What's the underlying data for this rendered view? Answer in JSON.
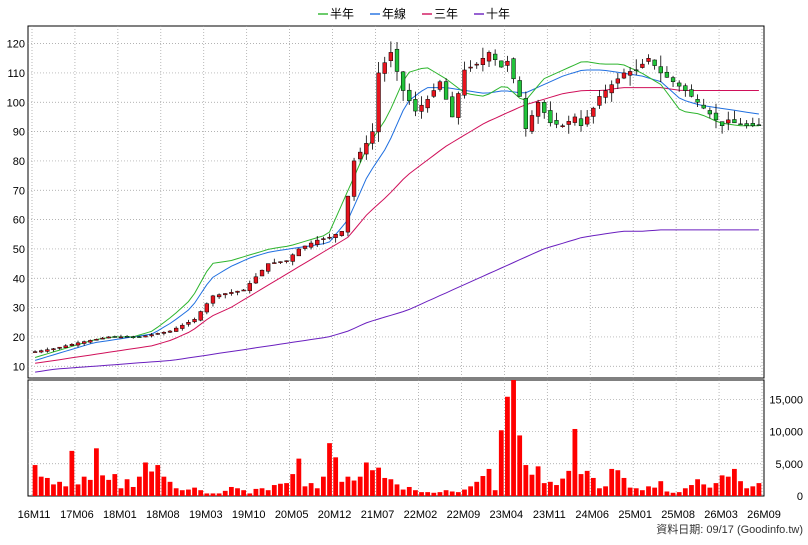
{
  "chart_data": {
    "type": "candlestick",
    "legend": [
      {
        "name": "半年",
        "color": "#2db52d"
      },
      {
        "name": "年線",
        "color": "#1f6fe0"
      },
      {
        "name": "三年",
        "color": "#d0105a"
      },
      {
        "name": "十年",
        "color": "#6a1fbf"
      }
    ],
    "x_labels": [
      "16M11",
      "17M06",
      "18M01",
      "18M08",
      "19M03",
      "19M10",
      "20M05",
      "20M12",
      "21M07",
      "22M02",
      "22M09",
      "23M04",
      "23M11",
      "24M06",
      "25M01",
      "25M08",
      "26M03",
      "26M09"
    ],
    "price_axis": {
      "ticks": [
        10,
        20,
        30,
        40,
        50,
        60,
        70,
        80,
        90,
        100,
        110,
        120
      ],
      "range": [
        6,
        126
      ]
    },
    "volume_axis": {
      "ticks": [
        0,
        5000,
        10000,
        15000
      ],
      "tick_labels": [
        "0",
        "5,000",
        "10,000",
        "15,000"
      ],
      "range": [
        0,
        18000
      ]
    },
    "ohlc_anchors": {
      "months_from_2016_11": [
        0,
        3,
        7,
        12,
        17,
        22,
        26,
        29,
        34,
        38,
        41,
        43,
        44,
        46,
        48,
        50,
        52,
        54,
        55,
        56,
        58,
        60,
        62,
        64,
        66,
        68,
        70,
        72,
        74,
        76,
        77,
        78,
        79,
        80,
        82,
        84,
        86,
        88,
        89,
        90,
        91,
        92,
        93,
        95,
        96,
        98,
        100,
        102,
        104,
        106,
        108,
        110,
        112,
        113,
        114,
        116,
        118
      ],
      "close": [
        15,
        16,
        18,
        20,
        20,
        22,
        26,
        34,
        36,
        45,
        46,
        50,
        51,
        53,
        54,
        56,
        80,
        86,
        90,
        110,
        117,
        104,
        97,
        101,
        107,
        95,
        111,
        113,
        117,
        112,
        114,
        108,
        102,
        91,
        100,
        93,
        92,
        95,
        92,
        95,
        98,
        102,
        104,
        108,
        110,
        111,
        115,
        110,
        107,
        104,
        100,
        96,
        92,
        94,
        93,
        92,
        92
      ]
    },
    "moving_average_anchors": {
      "half_year": [
        13,
        15,
        17,
        19,
        20,
        20,
        22,
        27,
        33,
        45,
        46,
        48,
        50,
        51,
        53,
        55,
        70,
        85,
        95,
        110,
        112,
        108,
        103,
        102,
        106,
        100,
        108,
        111,
        114,
        113,
        113,
        110,
        106,
        97,
        96,
        93,
        92,
        92
      ],
      "one_year": [
        12,
        14,
        16,
        18,
        19,
        20,
        21,
        25,
        30,
        40,
        44,
        47,
        49,
        50,
        51,
        52,
        60,
        75,
        85,
        100,
        105,
        105,
        104,
        103,
        104,
        103,
        106,
        109,
        111,
        111,
        110,
        109,
        107,
        101,
        99,
        98,
        97,
        96
      ],
      "three_year": [
        11,
        12,
        13,
        14,
        15,
        16,
        17,
        19,
        22,
        27,
        30,
        34,
        38,
        42,
        46,
        50,
        54,
        62,
        68,
        75,
        80,
        85,
        89,
        93,
        96,
        99,
        101,
        103,
        104,
        104,
        105,
        105,
        105,
        104,
        104,
        104,
        104,
        104
      ],
      "ten_year": [
        8,
        9,
        9.5,
        10,
        10.5,
        11,
        11.5,
        12,
        13,
        14,
        15,
        16,
        17,
        18,
        19,
        20,
        22,
        25,
        27,
        29,
        32,
        35,
        38,
        41,
        44,
        47,
        50,
        52,
        54,
        55,
        56,
        56,
        56.5,
        56.5,
        56.5,
        56.5,
        56.5,
        56.5
      ]
    },
    "volume_bars": [
      4800,
      3000,
      2800,
      1800,
      2200,
      1500,
      7000,
      1800,
      3000,
      2500,
      7400,
      3200,
      2500,
      3400,
      1200,
      2600,
      1400,
      3000,
      5200,
      3800,
      4800,
      3000,
      2200,
      1200,
      900,
      1000,
      1300,
      900,
      400,
      400,
      400,
      800,
      1400,
      1200,
      900,
      400,
      1100,
      1200,
      900,
      1700,
      1900,
      2000,
      3400,
      5800,
      1500,
      2000,
      1200,
      3000,
      8200,
      6000,
      2200,
      3000,
      2400,
      3000,
      5200,
      4000,
      4400,
      2800,
      2600,
      1800,
      1000,
      1400,
      900,
      600,
      600,
      500,
      600,
      900,
      700,
      600,
      1000,
      1500,
      2200,
      3100,
      4200,
      900,
      10200,
      15400,
      18000,
      9400,
      4800,
      3300,
      4600,
      2000,
      2200,
      1700,
      2700,
      3900,
      10400,
      3400,
      3900,
      2800,
      1200,
      1500,
      4200,
      4000,
      2800,
      1300,
      1200,
      900,
      1500,
      1300,
      2300,
      700,
      500,
      600,
      1200,
      1700,
      2600,
      1800,
      1300,
      2000,
      3200,
      3000,
      4200,
      2300,
      1200,
      1500,
      2000,
      2400,
      2600,
      3600,
      3300,
      3000,
      1900,
      1400,
      1200,
      300
    ],
    "footer": "資料日期: 09/17  (Goodinfo.tw)"
  }
}
